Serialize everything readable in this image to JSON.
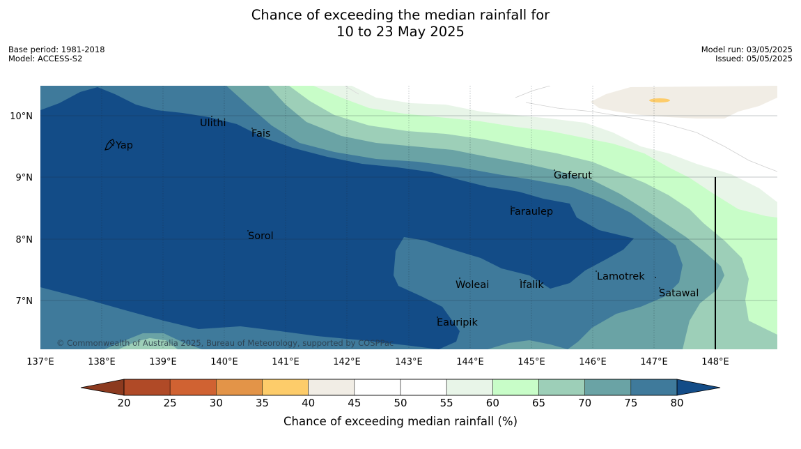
{
  "title_line1": "Chance of exceeding the median rainfall for",
  "title_line2": "10 to 23 May 2025",
  "base_period": "Base period: 1981-2018",
  "model": "Model: ACCESS-S2",
  "model_run": "Model run: 03/05/2025",
  "issued": "Issued: 05/05/2025",
  "credit": "© Commonwealth of Australia 2025, Bureau of Meteorology, supported by COSPPac",
  "colors": {
    "c80": "#134c87",
    "c75": "#3f7a9b",
    "c70": "#6aa3a5",
    "c65": "#9dcfb8",
    "c60": "#c8fdc8",
    "c55": "#e8f5e8",
    "c40": "#f1ede5",
    "c35": "#fdcc6a",
    "outline": "#000000"
  },
  "longitude_labels": [
    "137°E",
    "138°E",
    "139°E",
    "140°E",
    "141°E",
    "142°E",
    "143°E",
    "144°E",
    "145°E",
    "146°E",
    "147°E",
    "148°E"
  ],
  "latitude_labels": [
    "10°N",
    "9°N",
    "8°N",
    "7°N"
  ],
  "places": [
    {
      "name": "Yap"
    },
    {
      "name": "Ulithi"
    },
    {
      "name": "Fais"
    },
    {
      "name": "Gaferut"
    },
    {
      "name": "Faraulep"
    },
    {
      "name": "Sorol"
    },
    {
      "name": "Lamotrek"
    },
    {
      "name": "Woleai"
    },
    {
      "name": "Ifalik"
    },
    {
      "name": "Satawal"
    },
    {
      "name": "Eauripik"
    }
  ],
  "colorbar": {
    "title": "Chance of exceeding median rainfall (%)",
    "ticks": [
      "20",
      "25",
      "30",
      "35",
      "40",
      "45",
      "50",
      "55",
      "60",
      "65",
      "70",
      "75",
      "80"
    ],
    "below_color": "#8c3a1f",
    "above_color": "#134c87",
    "segment_colors": [
      "#b04a27",
      "#d06232",
      "#e39448",
      "#fdcc6a",
      "#f1ede5",
      "#ffffff",
      "#ffffff",
      "#e8f5e8",
      "#c8fdc8",
      "#9dcfb8",
      "#6aa3a5",
      "#3f7a9b"
    ]
  }
}
